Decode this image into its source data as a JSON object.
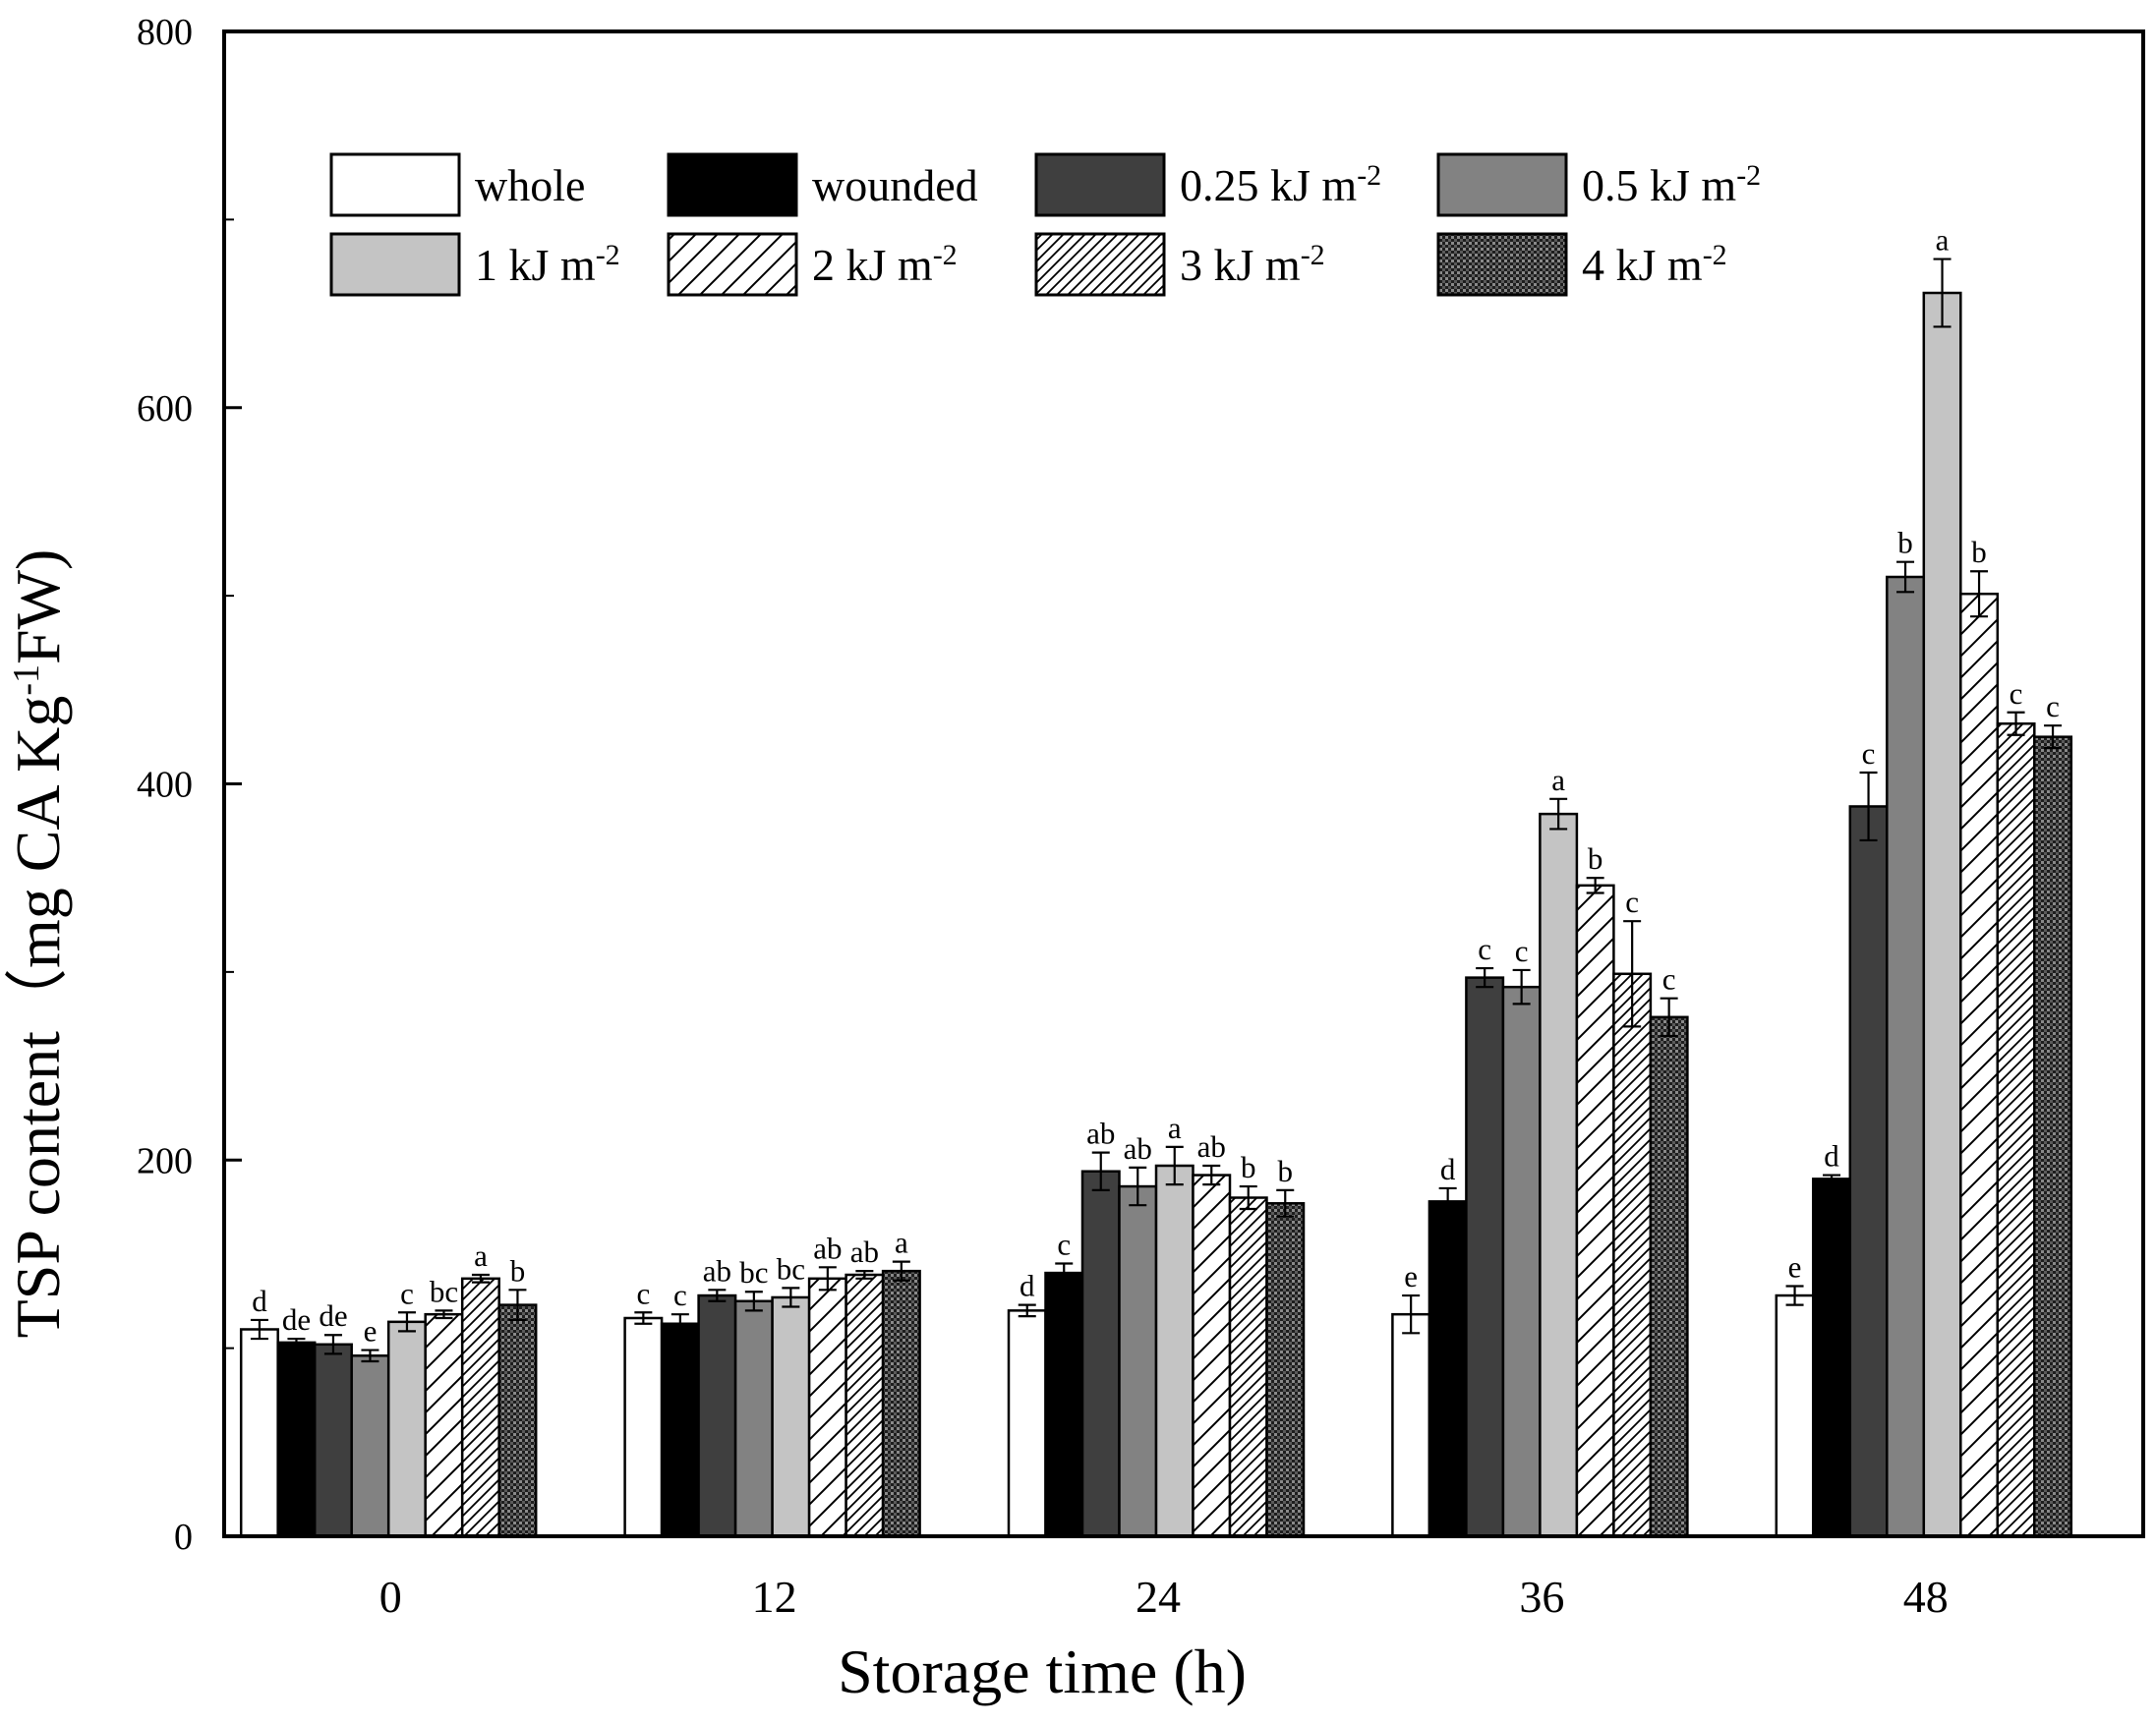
{
  "chart_data": {
    "type": "bar",
    "xlabel": "Storage time (h)",
    "ylabel": {
      "pre": "TSP content（mg CA Kg",
      "sup": "-1",
      "post": "FW)"
    },
    "ylim": [
      0,
      800
    ],
    "yticks": [
      0,
      200,
      400,
      600,
      800
    ],
    "categories": [
      "0",
      "12",
      "24",
      "36",
      "48"
    ],
    "legend_position": "top, 4 columns",
    "series": [
      {
        "name": "whole",
        "unit": "",
        "style": "white",
        "values": [
          110,
          116,
          120,
          118,
          128
        ],
        "errors": [
          5,
          3,
          3,
          10,
          5
        ],
        "labels": [
          "d",
          "c",
          "d",
          "e",
          "e"
        ]
      },
      {
        "name": "wounded",
        "unit": "",
        "style": "black",
        "values": [
          103,
          113,
          140,
          178,
          190
        ],
        "errors": [
          2,
          5,
          5,
          7,
          2
        ],
        "labels": [
          "de",
          "c",
          "c",
          "d",
          "d"
        ]
      },
      {
        "name": "0.25 kJ m",
        "unit": "-2",
        "style": "darkgray",
        "values": [
          102,
          128,
          194,
          297,
          388
        ],
        "errors": [
          5,
          3,
          10,
          5,
          18
        ],
        "labels": [
          "de",
          "ab",
          "ab",
          "c",
          "c"
        ]
      },
      {
        "name": "0.5 kJ m",
        "unit": "-2",
        "style": "gray",
        "values": [
          96,
          125,
          186,
          292,
          510
        ],
        "errors": [
          3,
          5,
          10,
          9,
          8
        ],
        "labels": [
          "e",
          "bc",
          "ab",
          "c",
          "b"
        ]
      },
      {
        "name": "1 kJ m",
        "unit": "-2",
        "style": "lightgray",
        "values": [
          114,
          127,
          197,
          384,
          661
        ],
        "errors": [
          5,
          5,
          10,
          8,
          18
        ],
        "labels": [
          "c",
          "bc",
          "a",
          "a",
          "a"
        ]
      },
      {
        "name": "2 kJ m",
        "unit": "-2",
        "style": "hatch-wide",
        "values": [
          118,
          137,
          192,
          346,
          501
        ],
        "errors": [
          2,
          6,
          5,
          4,
          12
        ],
        "labels": [
          "bc",
          "ab",
          "ab",
          "b",
          "b"
        ]
      },
      {
        "name": "3 kJ m",
        "unit": "-2",
        "style": "hatch-dense",
        "values": [
          137,
          139,
          180,
          299,
          432
        ],
        "errors": [
          2,
          2,
          6,
          28,
          6
        ],
        "labels": [
          "a",
          "ab",
          "b",
          "c",
          "c"
        ]
      },
      {
        "name": "4 kJ m",
        "unit": "-2",
        "style": "grid",
        "values": [
          123,
          141,
          177,
          276,
          425
        ],
        "errors": [
          8,
          5,
          7,
          10,
          6
        ],
        "labels": [
          "b",
          "a",
          "b",
          "c",
          "c"
        ]
      }
    ]
  }
}
